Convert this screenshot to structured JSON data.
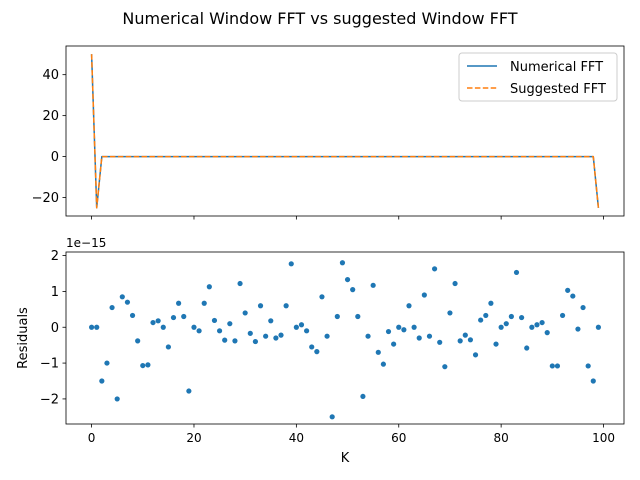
{
  "figure_title": "Numerical Window FFT vs suggested Window FFT",
  "colors": {
    "blue": "#1f77b4",
    "orange": "#ff7f0e"
  },
  "chart_data": [
    {
      "type": "line",
      "title": "",
      "xlabel": "",
      "ylabel": "",
      "xlim": [
        -5,
        104
      ],
      "ylim": [
        -29,
        54
      ],
      "yticks": [
        -20,
        0,
        20,
        40
      ],
      "xticks": [
        0,
        20,
        40,
        60,
        80,
        100
      ],
      "show_xticklabels": false,
      "legend_position": "top-right",
      "series": [
        {
          "name": "Numerical FFT",
          "style": "solid",
          "color": "#1f77b4",
          "x": [
            0,
            1,
            2,
            3,
            98,
            99
          ],
          "y": [
            50,
            -25,
            0,
            0,
            0,
            -25
          ]
        },
        {
          "name": "Suggested FFT",
          "style": "dashed",
          "color": "#ff7f0e",
          "x": [
            0,
            1,
            2,
            3,
            98,
            99
          ],
          "y": [
            50,
            -25,
            0,
            0,
            0,
            -25
          ]
        }
      ]
    },
    {
      "type": "scatter",
      "title": "",
      "xlabel": "K",
      "ylabel": "Residuals",
      "offset_text": "1e−15",
      "scale": 1e-15,
      "xlim": [
        -5,
        104
      ],
      "ylim": [
        -2.7,
        2.1
      ],
      "yticks": [
        -2,
        -1,
        0,
        1,
        2
      ],
      "ytick_labels": [
        "−2",
        "−1",
        "0",
        "1",
        "2"
      ],
      "xticks": [
        0,
        20,
        40,
        60,
        80,
        100
      ],
      "xtick_labels": [
        "0",
        "20",
        "40",
        "60",
        "80",
        "100"
      ],
      "series": [
        {
          "color": "#1f77b4",
          "x": [
            0,
            1,
            2,
            3,
            4,
            5,
            6,
            7,
            8,
            9,
            10,
            11,
            12,
            13,
            14,
            15,
            16,
            17,
            18,
            19,
            20,
            21,
            22,
            23,
            24,
            25,
            26,
            27,
            28,
            29,
            30,
            31,
            32,
            33,
            34,
            35,
            36,
            37,
            38,
            39,
            40,
            41,
            42,
            43,
            44,
            45,
            46,
            47,
            48,
            49,
            50,
            51,
            52,
            53,
            54,
            55,
            56,
            57,
            58,
            59,
            60,
            61,
            62,
            63,
            64,
            65,
            66,
            67,
            68,
            69,
            70,
            71,
            72,
            73,
            74,
            75,
            76,
            77,
            78,
            79,
            80,
            81,
            82,
            83,
            84,
            85,
            86,
            87,
            88,
            89,
            90,
            91,
            92,
            93,
            94,
            95,
            96,
            97,
            98,
            99
          ],
          "y": [
            0.0,
            0.0,
            -1.5,
            -1.0,
            0.55,
            -2.0,
            0.85,
            0.7,
            0.33,
            -0.38,
            -1.07,
            -1.05,
            0.13,
            0.18,
            0.0,
            -0.55,
            0.27,
            0.67,
            0.3,
            -1.78,
            0.0,
            -0.1,
            0.67,
            1.13,
            0.19,
            -0.1,
            -0.36,
            0.1,
            -0.38,
            1.22,
            0.4,
            -0.17,
            -0.4,
            0.6,
            -0.25,
            0.18,
            -0.3,
            -0.22,
            0.6,
            1.77,
            0.0,
            0.07,
            -0.1,
            -0.55,
            -0.68,
            0.85,
            -0.25,
            -2.5,
            0.3,
            1.8,
            1.33,
            1.05,
            0.3,
            -1.93,
            -0.25,
            1.17,
            -0.7,
            -1.03,
            -0.12,
            -0.47,
            0.0,
            -0.07,
            0.6,
            0.0,
            -0.3,
            0.9,
            -0.25,
            1.63,
            -0.42,
            -1.1,
            0.4,
            1.22,
            -0.38,
            -0.22,
            -0.35,
            -0.77,
            0.2,
            0.33,
            0.67,
            -0.47,
            0.0,
            0.1,
            0.3,
            1.53,
            0.27,
            -0.58,
            0.0,
            0.07,
            0.13,
            -0.15,
            -1.08,
            -1.08,
            0.33,
            1.03,
            0.87,
            -0.05,
            0.55,
            -1.08,
            -1.5,
            0.0
          ]
        }
      ]
    }
  ]
}
